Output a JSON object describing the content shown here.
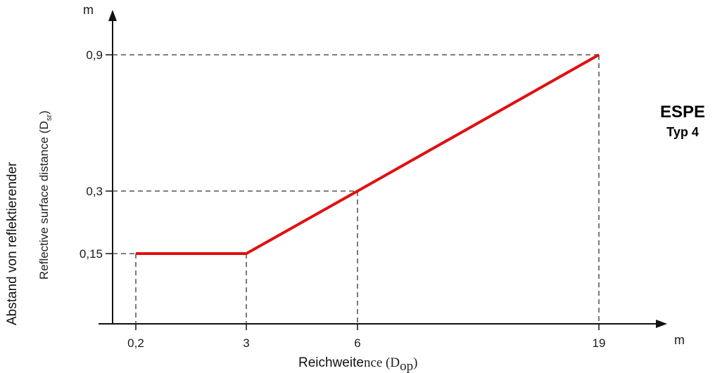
{
  "chart_data": {
    "type": "line",
    "x": [
      0.2,
      3,
      6,
      19
    ],
    "y": [
      0.15,
      0.15,
      0.3,
      0.9
    ],
    "x_ticks": [
      "0,2",
      "3",
      "6",
      "19"
    ],
    "y_ticks": [
      "0,15",
      "0,3",
      "0,9"
    ],
    "x_unit": "m",
    "y_unit": "m",
    "xlabel_parts": [
      "Reichweite",
      "nce (D",
      "op",
      ")"
    ],
    "ylabel_line1": "Abstand von reflektierender",
    "ylabel_line2_parts": [
      "Reflective surface distance (D",
      "sr",
      ")"
    ],
    "side_title": "ESPE",
    "side_subtitle": "Typ 4",
    "line_color": "#e01010",
    "grid": "dashed guide lines to points",
    "legend": "none"
  }
}
